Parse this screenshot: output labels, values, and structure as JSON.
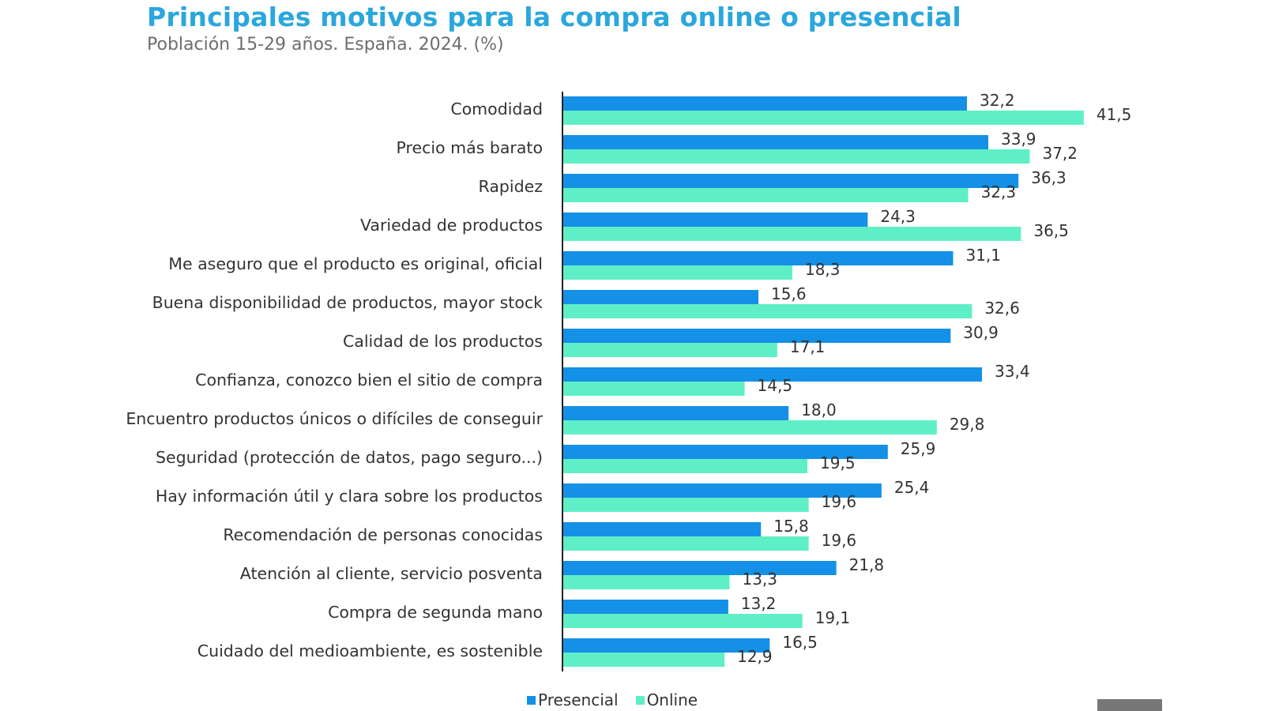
{
  "header": {
    "title": "Principales motivos para la compra online o presencial",
    "subtitle": "Población 15-29 años. España. 2024. (%)"
  },
  "colors": {
    "presencial": "#1490e6",
    "online": "#5fefc6",
    "title": "#2aa7dc",
    "axis": "#222222"
  },
  "chart_data": {
    "type": "bar",
    "orientation": "horizontal",
    "title": "Principales motivos para la compra online o presencial",
    "subtitle": "Población 15-29 años. España. 2024. (%)",
    "xlim": [
      0,
      50
    ],
    "grid": false,
    "legend_position": "bottom-center",
    "decimal_separator": ",",
    "categories": [
      "Comodidad",
      "Precio más barato",
      "Rapidez",
      "Variedad de productos",
      "Me aseguro que el producto es original, oficial",
      "Buena disponibilidad de productos, mayor stock",
      "Calidad de los productos",
      "Confianza, conozco bien el sitio de compra",
      "Encuentro productos únicos o difíciles de conseguir",
      "Seguridad (protección de datos, pago seguro...)",
      "Hay información útil y clara sobre los productos",
      "Recomendación de personas conocidas",
      "Atención al cliente, servicio posventa",
      "Compra de segunda mano",
      "Cuidado del medioambiente, es sostenible"
    ],
    "series": [
      {
        "name": "Presencial",
        "values": [
          32.2,
          33.9,
          36.3,
          24.3,
          31.1,
          15.6,
          30.9,
          33.4,
          18.0,
          25.9,
          25.4,
          15.8,
          21.8,
          13.2,
          16.5
        ]
      },
      {
        "name": "Online",
        "values": [
          41.5,
          37.2,
          32.3,
          36.5,
          18.3,
          32.6,
          17.1,
          14.5,
          29.8,
          19.5,
          19.6,
          19.6,
          13.3,
          19.1,
          12.9
        ]
      }
    ]
  }
}
